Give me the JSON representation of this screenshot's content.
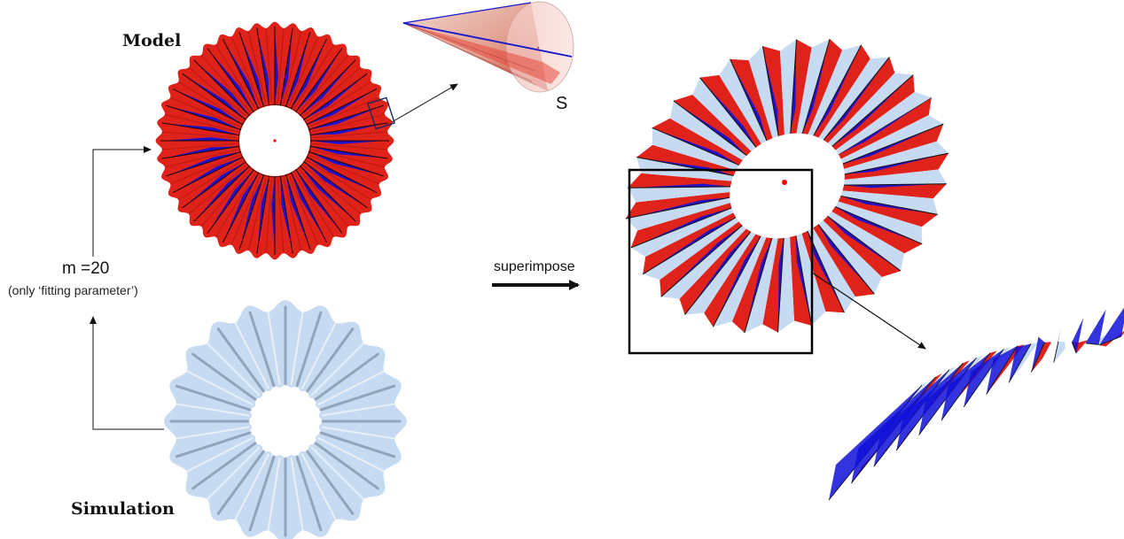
{
  "labels": {
    "model": "Model",
    "simulation": "Simulation",
    "m_value": "m =20",
    "fitting_note": "(only ‘fitting parameter’)",
    "superimpose": "superimpose",
    "cone_label": "S"
  },
  "colors": {
    "model_red": "#e0231a",
    "crease_blue": "#1010d8",
    "sim_blue": "#c6daf2",
    "sim_shade": "#5f7086",
    "arrow": "#111111",
    "frame": "#000000",
    "center_dot": "#ff0000"
  },
  "model": {
    "pleats": 40
  },
  "simulation": {
    "pleats": 20
  }
}
